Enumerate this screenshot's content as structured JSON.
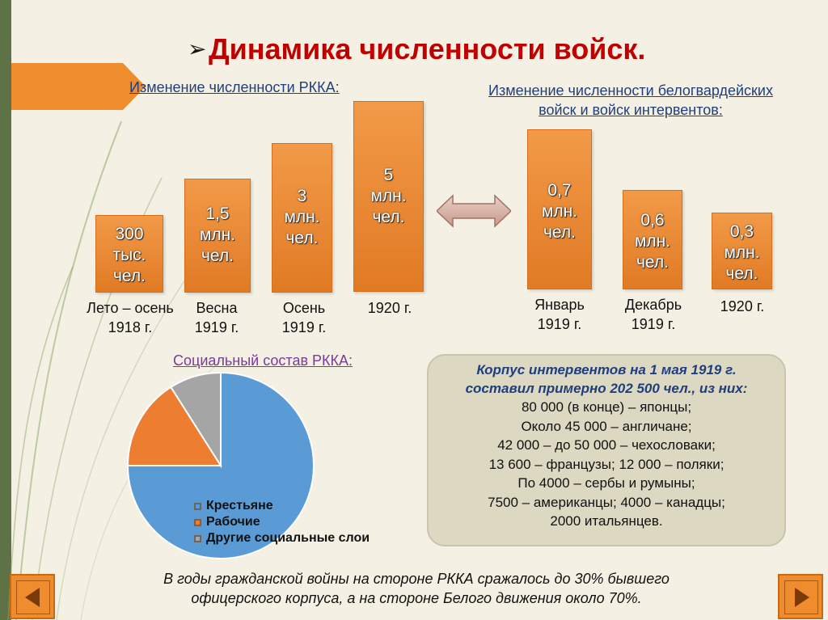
{
  "title": "Динамика численности войск.",
  "title_bullet": "➢",
  "rkka_heading": "Изменение численности РККА:",
  "white_heading_line1": "Изменение численности белогвардейских",
  "white_heading_line2": "войск и войск интервентов:",
  "rkka_bars": [
    {
      "l1": "300",
      "l2": "тыс.",
      "l3": "чел.",
      "cap1": "Лето – осень",
      "cap2": "1918 г."
    },
    {
      "l1": "1,5",
      "l2": "млн.",
      "l3": "чел.",
      "cap1": "Весна",
      "cap2": "1919 г."
    },
    {
      "l1": "3",
      "l2": "млн.",
      "l3": "чел.",
      "cap1": "Осень",
      "cap2": "1919 г."
    },
    {
      "l1": "5",
      "l2": "млн.",
      "l3": "чел.",
      "cap1": "1920 г.",
      "cap2": ""
    }
  ],
  "white_bars": [
    {
      "l1": "0,7",
      "l2": "млн.",
      "l3": "чел.",
      "cap1": "Январь",
      "cap2": "1919 г."
    },
    {
      "l1": "0,6",
      "l2": "млн.",
      "l3": "чел.",
      "cap1": "Декабрь",
      "cap2": "1919 г."
    },
    {
      "l1": "0,3",
      "l2": "млн.",
      "l3": "чел.",
      "cap1": "1920 г.",
      "cap2": ""
    }
  ],
  "social": {
    "title": "Социальный состав РККА:",
    "legend": [
      "Крестьяне",
      "Рабочие",
      "Другие социальные слои"
    ]
  },
  "chart_data": {
    "type": "pie",
    "title": "Социальный состав РККА:",
    "categories": [
      "Крестьяне",
      "Рабочие",
      "Другие социальные слои"
    ],
    "values": [
      75,
      16,
      9
    ],
    "colors": [
      "#5b9bd5",
      "#ed7d31",
      "#a5a5a5"
    ],
    "legend_position": "bottom-right"
  },
  "intervention": {
    "head1": "Корпус интервентов на 1 мая 1919 г.",
    "head2": "составил примерно 202 500 чел., из них:",
    "lines": [
      "80 000 (в конце) – японцы;",
      "Около 45 000 – англичане;",
      "42 000 – до 50 000 – чехословаки;",
      "13 600 – французы; 12 000 – поляки;",
      "По 4000 – сербы и румыны;",
      "7500 – американцы; 4000 – канадцы;",
      "2000 итальянцев."
    ]
  },
  "bottom_line1": "В годы гражданской войны на стороне РККА сражалось до 30% бывшего",
  "bottom_line2": "офицерского корпуса, а на стороне Белого движения около 70%."
}
